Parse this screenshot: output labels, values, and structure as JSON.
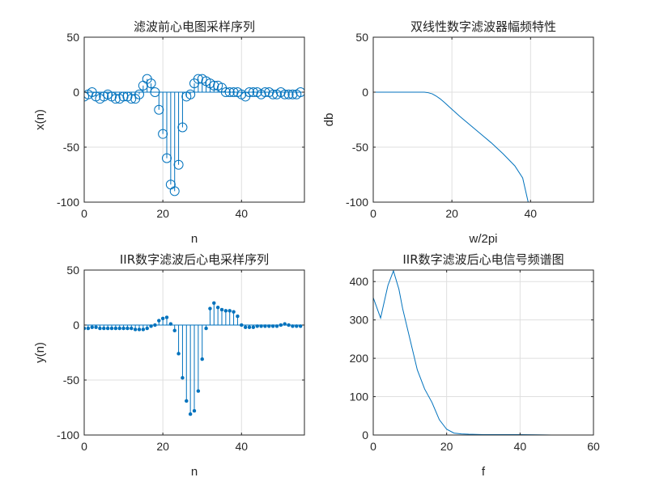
{
  "colors": {
    "series": "#0072BD",
    "grid": "#DFDFDF",
    "axis": "#262626"
  },
  "chart_data": [
    {
      "type": "stem",
      "title": "滤波前心电图采样序列",
      "xlabel": "n",
      "ylabel": "x(n)",
      "xlim": [
        0,
        56
      ],
      "ylim": [
        -100,
        50
      ],
      "xticks": [
        0,
        20,
        40
      ],
      "yticks": [
        -100,
        -50,
        0,
        50
      ],
      "xtick_labels": [
        "0",
        "20",
        "40"
      ],
      "ytick_labels": [
        "-100",
        "-50",
        "0",
        "50"
      ],
      "grid": true,
      "marker": "circle",
      "x": [
        0,
        1,
        2,
        3,
        4,
        5,
        6,
        7,
        8,
        9,
        10,
        11,
        12,
        13,
        14,
        15,
        16,
        17,
        18,
        19,
        20,
        21,
        22,
        23,
        24,
        25,
        26,
        27,
        28,
        29,
        30,
        31,
        32,
        33,
        34,
        35,
        36,
        37,
        38,
        39,
        40,
        41,
        42,
        43,
        44,
        45,
        46,
        47,
        48,
        49,
        50,
        51,
        52,
        53,
        54,
        55
      ],
      "values": [
        -4,
        -2,
        0,
        -4,
        -6,
        -4,
        -2,
        -4,
        -6,
        -6,
        -4,
        -4,
        -6,
        -6,
        -2,
        6,
        12,
        8,
        0,
        -16,
        -38,
        -60,
        -84,
        -90,
        -66,
        -32,
        -4,
        -2,
        8,
        12,
        12,
        10,
        8,
        6,
        6,
        4,
        0,
        0,
        0,
        0,
        -2,
        -4,
        0,
        0,
        0,
        -2,
        0,
        0,
        -2,
        -2,
        0,
        -2,
        -2,
        -2,
        -2,
        0
      ]
    },
    {
      "type": "line",
      "title": "双线性数字滤波器幅频特性",
      "xlabel": "w/2pi",
      "ylabel": "db",
      "xlim": [
        0,
        56
      ],
      "ylim": [
        -100,
        50
      ],
      "xticks": [
        0,
        20,
        40
      ],
      "yticks": [
        -100,
        -50,
        0,
        50
      ],
      "xtick_labels": [
        "0",
        "20",
        "40"
      ],
      "ytick_labels": [
        "-100",
        "-50",
        "0",
        "50"
      ],
      "grid": true,
      "x": [
        0,
        10,
        13,
        14,
        15,
        16,
        17,
        18,
        20,
        22,
        25,
        28,
        30,
        33,
        36,
        38,
        39.4
      ],
      "values": [
        0,
        0,
        0,
        -0.5,
        -1.5,
        -3.5,
        -6,
        -9,
        -15.5,
        -22,
        -31,
        -40,
        -46,
        -56,
        -67,
        -78,
        -100
      ]
    },
    {
      "type": "stem",
      "title": "IIR数字滤波后心电采样序列",
      "xlabel": "n",
      "ylabel": "y(n)",
      "xlim": [
        0,
        56
      ],
      "ylim": [
        -100,
        50
      ],
      "xticks": [
        0,
        20,
        40
      ],
      "yticks": [
        -100,
        -50,
        0,
        50
      ],
      "xtick_labels": [
        "0",
        "20",
        "40"
      ],
      "ytick_labels": [
        "-100",
        "-50",
        "0",
        "50"
      ],
      "grid": true,
      "marker": "dot",
      "x": [
        0,
        1,
        2,
        3,
        4,
        5,
        6,
        7,
        8,
        9,
        10,
        11,
        12,
        13,
        14,
        15,
        16,
        17,
        18,
        19,
        20,
        21,
        22,
        23,
        24,
        25,
        26,
        27,
        28,
        29,
        30,
        31,
        32,
        33,
        34,
        35,
        36,
        37,
        38,
        39,
        40,
        41,
        42,
        43,
        44,
        45,
        46,
        47,
        48,
        49,
        50,
        51,
        52,
        53,
        54,
        55
      ],
      "values": [
        -3,
        -3,
        -2,
        -2,
        -3,
        -3,
        -3,
        -3,
        -3,
        -3,
        -3,
        -3,
        -3,
        -4,
        -4,
        -4,
        -3,
        -1,
        0,
        4,
        6,
        7,
        1,
        -5,
        -26,
        -48,
        -69,
        -81,
        -78,
        -60,
        -31,
        -3,
        15,
        20,
        16,
        14,
        13,
        13,
        12,
        8,
        0,
        -2,
        -2,
        -2,
        -1,
        -1,
        -1,
        -1,
        -1,
        -1,
        0,
        1,
        0,
        -1,
        -1,
        -1
      ]
    },
    {
      "type": "line",
      "title": "IIR数字滤波后心电信号频谱图",
      "xlabel": "f",
      "ylabel": "",
      "xlim": [
        0,
        60
      ],
      "ylim": [
        0,
        430
      ],
      "xticks": [
        0,
        20,
        40,
        60
      ],
      "yticks": [
        0,
        100,
        200,
        300,
        400
      ],
      "xtick_labels": [
        "0",
        "20",
        "40",
        "60"
      ],
      "ytick_labels": [
        "0",
        "100",
        "200",
        "300",
        "400"
      ],
      "grid": true,
      "x": [
        0,
        2,
        4,
        5.5,
        7,
        8,
        10,
        12,
        14,
        16,
        18,
        20,
        22,
        24,
        26,
        30,
        35,
        40,
        45,
        48.7
      ],
      "values": [
        358,
        305,
        390,
        428,
        380,
        330,
        250,
        170,
        120,
        85,
        40,
        15,
        5,
        3,
        2,
        1,
        1,
        1,
        0.5,
        0
      ]
    }
  ]
}
